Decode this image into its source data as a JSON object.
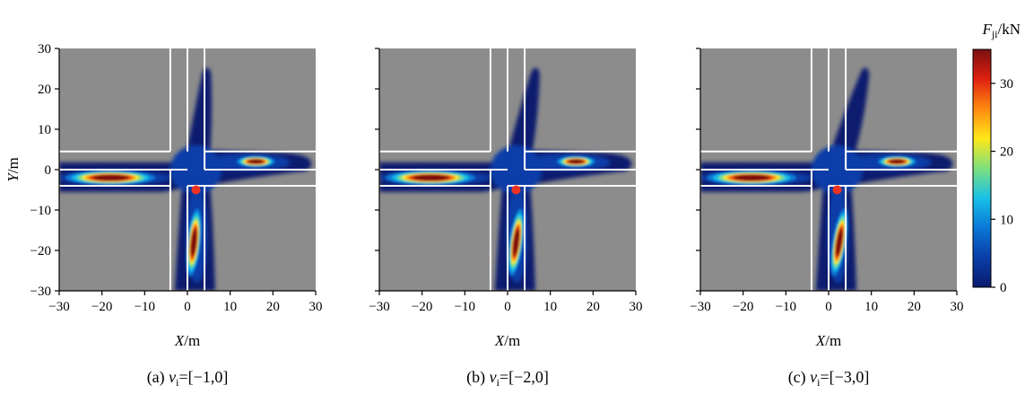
{
  "chart_data": [
    {
      "type": "heatmap",
      "panel": "a",
      "caption_prefix": "(a)",
      "caption_var": "v",
      "caption_sub": "i",
      "caption_value": "[−1,0]",
      "xlabel_var": "X",
      "xlabel_unit": "/m",
      "ylabel_var": "Y",
      "ylabel_unit": "/m",
      "xlim": [
        -30,
        30
      ],
      "ylim": [
        -30,
        30
      ],
      "xticks": [
        -30,
        -20,
        -10,
        0,
        10,
        20,
        30
      ],
      "yticks": [
        -30,
        -20,
        -10,
        0,
        10,
        20,
        30
      ],
      "show_yticklabels": true,
      "marker": {
        "x": 2,
        "y": -5,
        "color": "#ee3322"
      },
      "hotspots": [
        {
          "x": -18,
          "y": -2,
          "value": 35
        },
        {
          "x": 16,
          "y": 2,
          "value": 35
        },
        {
          "x": 1.5,
          "y": -18,
          "value": 35
        }
      ],
      "upper_arm_lean": 0
    },
    {
      "type": "heatmap",
      "panel": "b",
      "caption_prefix": "(b)",
      "caption_var": "v",
      "caption_sub": "i",
      "caption_value": "[−2,0]",
      "xlabel_var": "X",
      "xlabel_unit": "/m",
      "xlim": [
        -30,
        30
      ],
      "ylim": [
        -30,
        30
      ],
      "xticks": [
        -30,
        -20,
        -10,
        0,
        10,
        20,
        30
      ],
      "yticks": [
        -30,
        -20,
        -10,
        0,
        10,
        20,
        30
      ],
      "show_yticklabels": false,
      "marker": {
        "x": 2,
        "y": -5,
        "color": "#ee3322"
      },
      "hotspots": [
        {
          "x": -18,
          "y": -2,
          "value": 35
        },
        {
          "x": 16,
          "y": 2,
          "value": 35
        },
        {
          "x": 2,
          "y": -18,
          "value": 35
        }
      ],
      "upper_arm_lean": 1
    },
    {
      "type": "heatmap",
      "panel": "c",
      "caption_prefix": "(c)",
      "caption_var": "v",
      "caption_sub": "i",
      "caption_value": "[−3,0]",
      "xlabel_var": "X",
      "xlabel_unit": "/m",
      "xlim": [
        -30,
        30
      ],
      "ylim": [
        -30,
        30
      ],
      "xticks": [
        -30,
        -20,
        -10,
        0,
        10,
        20,
        30
      ],
      "yticks": [
        -30,
        -20,
        -10,
        0,
        10,
        20,
        30
      ],
      "show_yticklabels": false,
      "marker": {
        "x": 2,
        "y": -5,
        "color": "#ee3322"
      },
      "hotspots": [
        {
          "x": -18,
          "y": -2,
          "value": 35
        },
        {
          "x": 16,
          "y": 2,
          "value": 35
        },
        {
          "x": 2.5,
          "y": -18,
          "value": 35
        }
      ],
      "upper_arm_lean": 2
    }
  ],
  "colorbar": {
    "title_var": "F",
    "title_sub": "ji",
    "title_unit": "/kN",
    "min": 0,
    "max": 35,
    "ticks": [
      0,
      10,
      20,
      30
    ],
    "colors": [
      "#0a1a6e",
      "#0a3ea8",
      "#0a78d6",
      "#18c0e8",
      "#7ee07e",
      "#ffe81a",
      "#ff8a10",
      "#e02010",
      "#7a1010"
    ]
  },
  "colors": {
    "background": "#8c8c8c",
    "lane_lines": "#ffffff"
  }
}
